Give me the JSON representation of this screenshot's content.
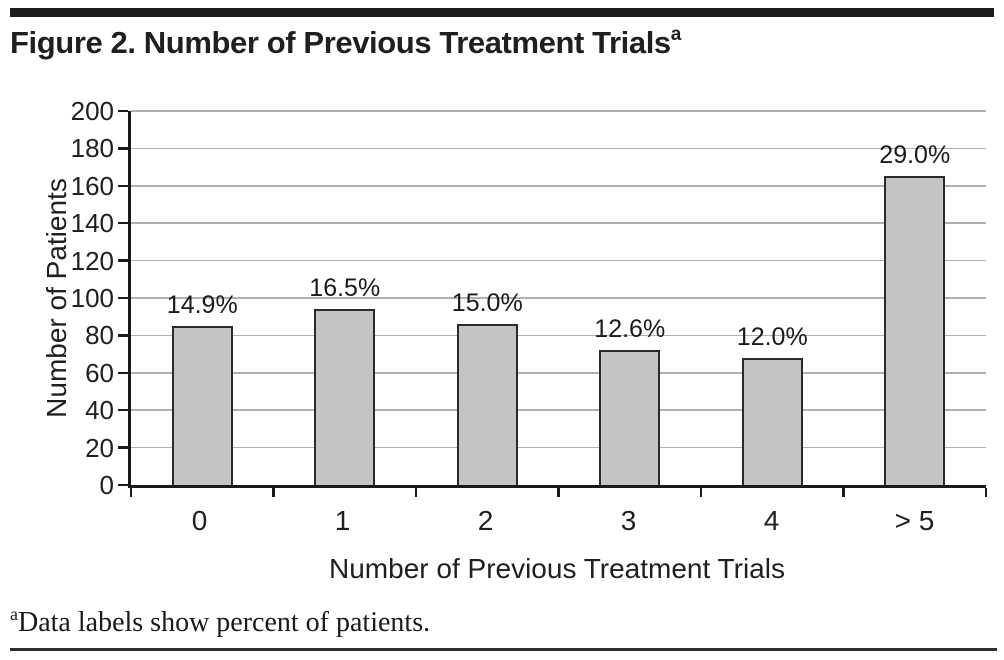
{
  "figure": {
    "title": "Figure 2. Number of Previous Treatment Trials",
    "title_superscript": "a",
    "footnote_superscript": "a",
    "footnote": "Data labels show percent of patients."
  },
  "chart_data": {
    "type": "bar",
    "title": "Figure 2. Number of Previous Treatment Trials",
    "categories": [
      "0",
      "1",
      "2",
      "3",
      "4",
      "> 5"
    ],
    "values": [
      85,
      94,
      86,
      72,
      68,
      165
    ],
    "percent_labels": [
      "14.9%",
      "16.5%",
      "15.0%",
      "12.6%",
      "12.0%",
      "29.0%"
    ],
    "xlabel": "Number of Previous Treatment Trials",
    "ylabel": "Number of Patients",
    "ylim": [
      0,
      200
    ],
    "yticks": [
      0,
      20,
      40,
      60,
      80,
      100,
      120,
      140,
      160,
      180,
      200
    ],
    "grid": "horizontal-only",
    "legend": "none",
    "annotation_note": "Data labels show percent of patients.",
    "colors": {
      "bar_fill": "#c4c4c4",
      "bar_border": "#2b2b2b",
      "gridline": "#b0b0b0",
      "axis": "#1a1a1a",
      "text": "#1f1f1f",
      "rule": "#1d1d1d"
    }
  }
}
